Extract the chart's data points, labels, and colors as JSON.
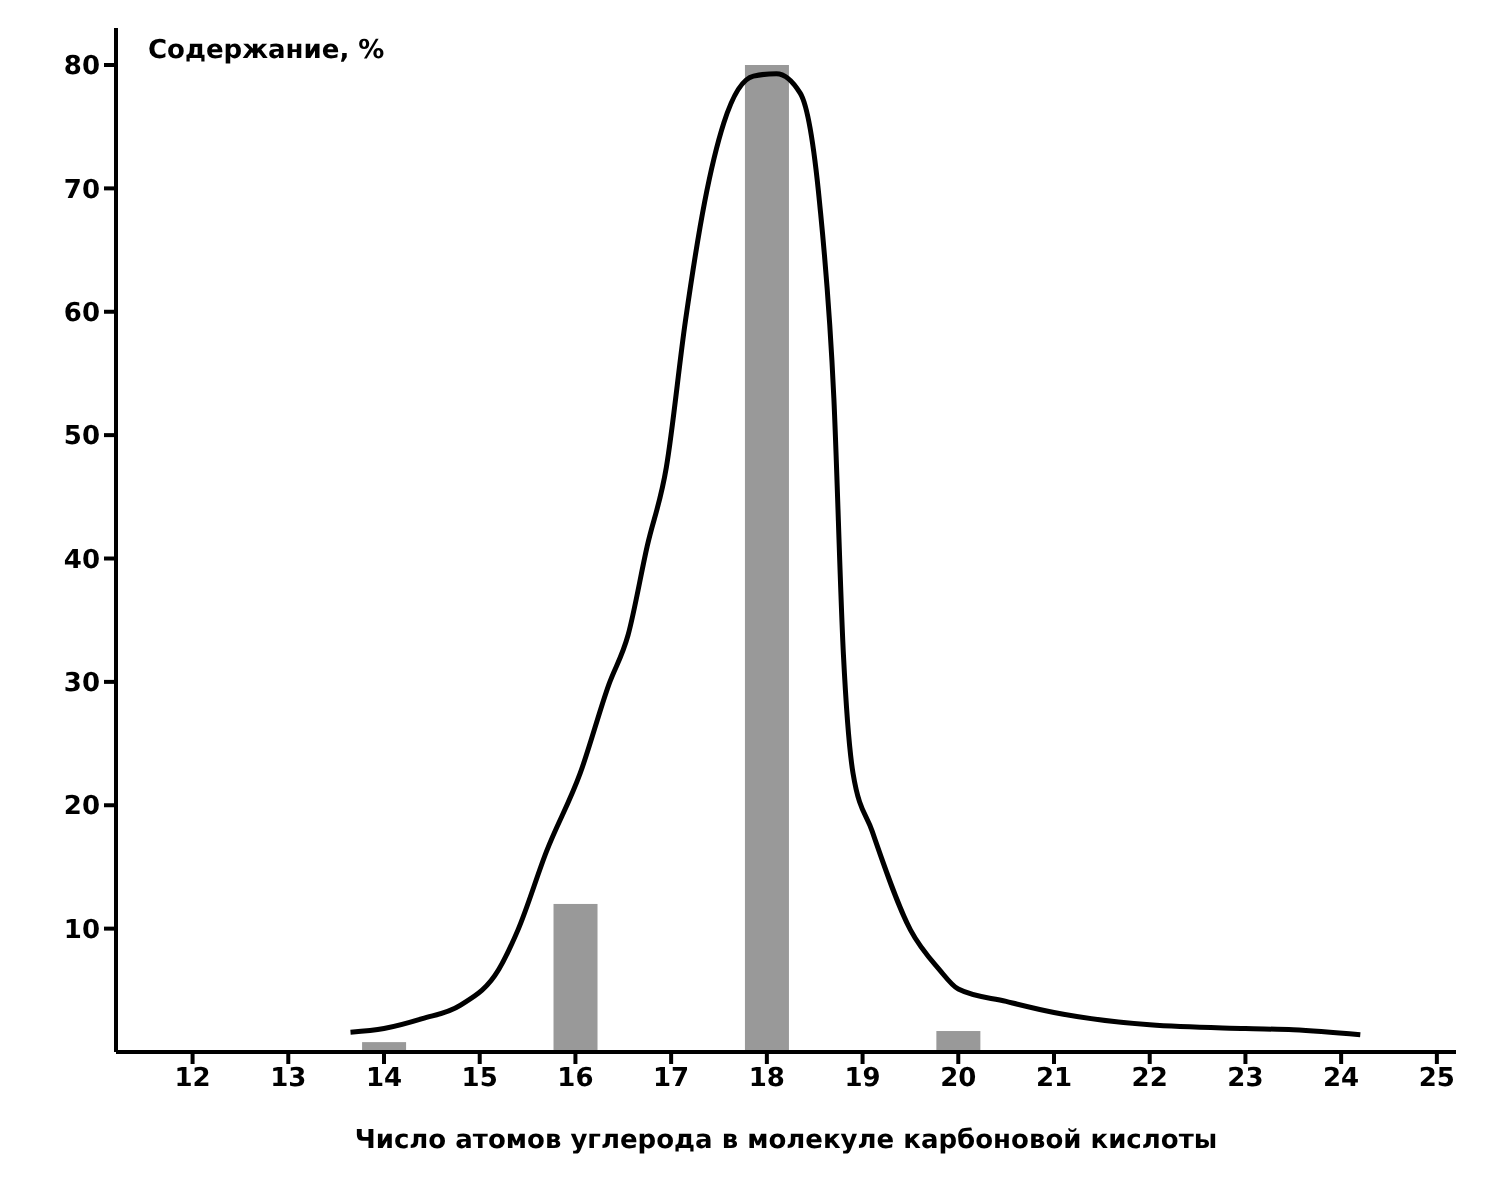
{
  "chart_data": {
    "type": "bar",
    "ylabel": "Содержание, %",
    "xlabel": "Число атомов углерода в молекуле карбоновой кислоты",
    "xlim": [
      11.2,
      25.2
    ],
    "xticks": [
      12,
      13,
      14,
      15,
      16,
      17,
      18,
      19,
      20,
      21,
      22,
      23,
      24,
      25
    ],
    "ylim": [
      0,
      83
    ],
    "yticks": [
      10,
      20,
      30,
      40,
      50,
      60,
      70,
      80
    ],
    "grid": false,
    "legend": false,
    "series": [
      {
        "color": "#999999",
        "x": [
          14,
          16,
          18,
          20
        ],
        "values": [
          0.8,
          12,
          80,
          1.7
        ]
      },
      {
        "type": "line",
        "color": "#000000",
        "x": [
          13.65,
          14,
          14.4,
          14.8,
          15.2,
          15.4,
          15.7,
          16.05,
          16.35,
          16.55,
          16.75,
          16.95,
          17.15,
          17.35,
          17.55,
          17.86,
          18.1,
          18.35,
          18.55,
          18.7,
          18.8,
          18.9,
          19.1,
          19.5,
          19.8,
          20,
          20.5,
          21,
          22,
          23,
          23.5,
          24.2
        ],
        "values": [
          1.6,
          1.9,
          2.7,
          3.8,
          6.7,
          9.9,
          16.3,
          22.6,
          29.8,
          33.8,
          41,
          47.4,
          59.3,
          68.9,
          75.3,
          79.1,
          79.3,
          77.7,
          68.9,
          53,
          32.2,
          22.6,
          17.9,
          9.9,
          6.7,
          5.1,
          4.1,
          3.2,
          2.2,
          1.9,
          1.8,
          1.4
        ]
      }
    ]
  }
}
